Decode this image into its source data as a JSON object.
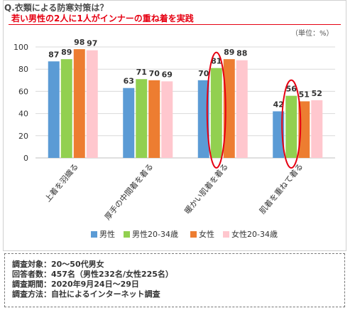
{
  "title": "Q.衣類による防寒対策は？",
  "subtitle": "若い男性の2人に1人がインナーの重ね着を実践",
  "unit": "（単位：%）",
  "chart_data": {
    "type": "bar",
    "categories": [
      "上着を羽織る",
      "厚手の中間着を着る",
      "暖かい肌着を着る",
      "肌着を重ねて着る"
    ],
    "series": [
      {
        "name": "男性",
        "color": "#5b9bd5",
        "values": [
          87,
          63,
          70,
          42
        ]
      },
      {
        "name": "男性20-34歳",
        "color": "#92d050",
        "values": [
          89,
          71,
          81,
          56
        ]
      },
      {
        "name": "女性",
        "color": "#ed7d31",
        "values": [
          98,
          70,
          89,
          51
        ]
      },
      {
        "name": "女性20-34歳",
        "color": "#ffc7ce",
        "values": [
          97,
          69,
          88,
          52
        ]
      }
    ],
    "yticks": [
      0,
      20,
      40,
      60,
      80,
      100
    ],
    "ylim": [
      0,
      100
    ],
    "highlights": [
      {
        "category": 2,
        "series": 1
      },
      {
        "category": 3,
        "series": 1
      }
    ],
    "highlight_color": "#e60012",
    "legend_position": "bottom"
  },
  "notes": [
    "調査対象：20～50代男女",
    "回答者数：457名（男性232名/女性225名）",
    "調査期間：2020年9月24日～29日",
    "調査方法：自社によるインターネット調査"
  ]
}
